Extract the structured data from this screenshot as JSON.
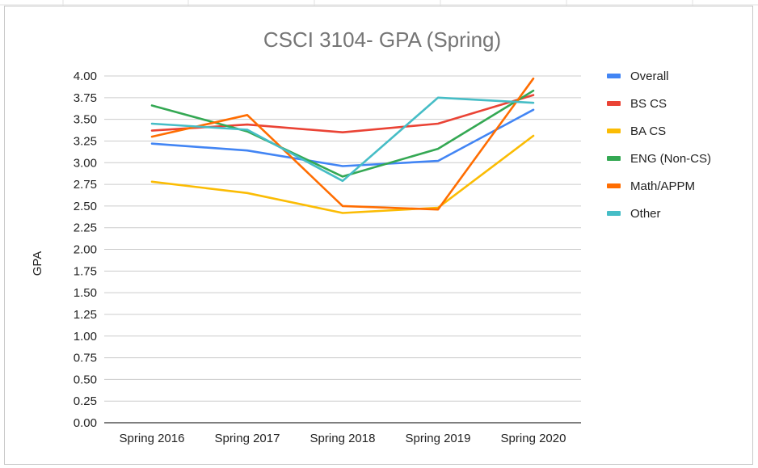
{
  "chart_data": {
    "type": "line",
    "title": "CSCI 3104- GPA (Spring)",
    "xlabel": "",
    "ylabel": "GPA",
    "categories": [
      "Spring 2016",
      "Spring 2017",
      "Spring 2018",
      "Spring 2019",
      "Spring 2020"
    ],
    "ylim": [
      0,
      4
    ],
    "yticks": [
      "0.00",
      "0.25",
      "0.50",
      "0.75",
      "1.00",
      "1.25",
      "1.50",
      "1.75",
      "2.00",
      "2.25",
      "2.50",
      "2.75",
      "3.00",
      "3.25",
      "3.50",
      "3.75",
      "4.00"
    ],
    "grid": true,
    "legend_position": "right",
    "series": [
      {
        "name": "Overall",
        "color": "#4285f4",
        "values": [
          3.22,
          3.14,
          2.96,
          3.02,
          3.61
        ]
      },
      {
        "name": "BS CS",
        "color": "#ea4335",
        "values": [
          3.37,
          3.44,
          3.35,
          3.45,
          3.78
        ]
      },
      {
        "name": "BA CS",
        "color": "#fbbc04",
        "values": [
          2.78,
          2.65,
          2.42,
          2.48,
          3.31
        ]
      },
      {
        "name": "ENG (Non-CS)",
        "color": "#34a853",
        "values": [
          3.66,
          3.36,
          2.84,
          3.16,
          3.83
        ]
      },
      {
        "name": "Math/APPM",
        "color": "#ff6d01",
        "values": [
          3.3,
          3.55,
          2.5,
          2.46,
          3.97
        ]
      },
      {
        "name": "Other",
        "color": "#46bdc6",
        "values": [
          3.45,
          3.38,
          2.79,
          3.75,
          3.69
        ]
      }
    ]
  }
}
